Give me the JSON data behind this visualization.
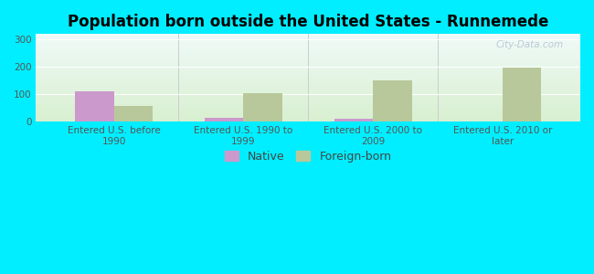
{
  "title": "Population born outside the United States - Runnemede",
  "categories": [
    "Entered U.S. before\n1990",
    "Entered U.S. 1990 to\n1999",
    "Entered U.S. 2000 to\n2009",
    "Entered U.S. 2010 or\nlater"
  ],
  "native_values": [
    110,
    13,
    10,
    0
  ],
  "foreign_values": [
    57,
    105,
    150,
    197
  ],
  "native_color": "#cc99cc",
  "foreign_color": "#b8c89a",
  "background_color": "#00eeff",
  "plot_bg_top": "#f0faf8",
  "plot_bg_bottom": "#d8f0d0",
  "ylim": [
    0,
    320
  ],
  "yticks": [
    0,
    100,
    200,
    300
  ],
  "bar_width": 0.3,
  "title_fontsize": 12,
  "tick_fontsize": 7.5,
  "legend_fontsize": 9,
  "watermark_text": "City-Data.com",
  "separator_color": "#cccccc",
  "grid_color": "#dddddd",
  "tick_color": "#555555"
}
